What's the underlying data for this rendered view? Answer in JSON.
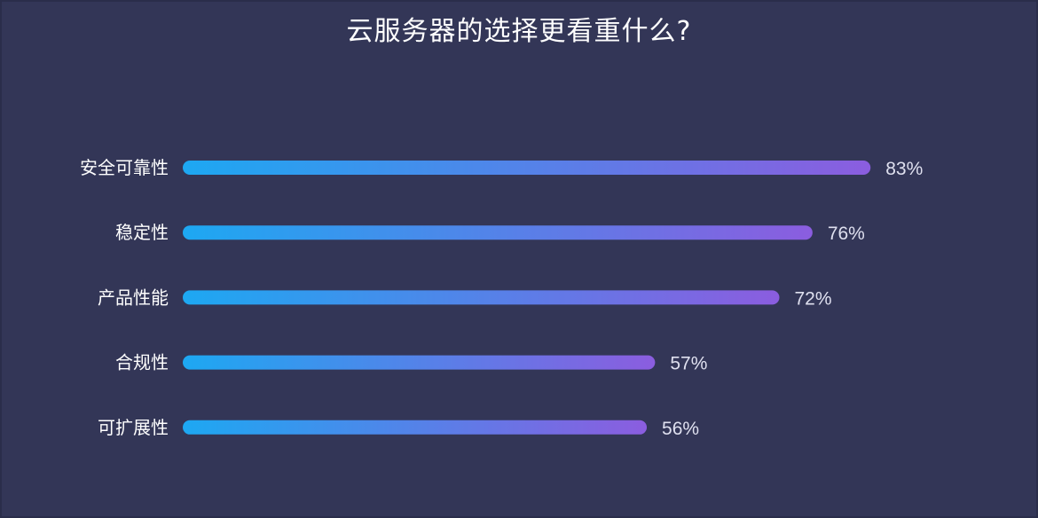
{
  "title": "云服务器的选择更看重什么?",
  "chart_data": {
    "type": "bar",
    "orientation": "horizontal",
    "title": "云服务器的选择更看重什么?",
    "categories": [
      "安全可靠性",
      "稳定性",
      "产品性能",
      "合规性",
      "可扩展性"
    ],
    "values": [
      83,
      76,
      72,
      57,
      56
    ],
    "value_labels": [
      "83%",
      "76%",
      "72%",
      "57%",
      "56%"
    ],
    "unit": "%",
    "xlim": [
      0,
      100
    ],
    "grid": false,
    "legend": "none",
    "colors": {
      "background": "#333657",
      "bar_start": "#1da8f2",
      "bar_end": "#8b5ddf",
      "label": "#ffffff",
      "value": "#dfe0ef"
    }
  }
}
